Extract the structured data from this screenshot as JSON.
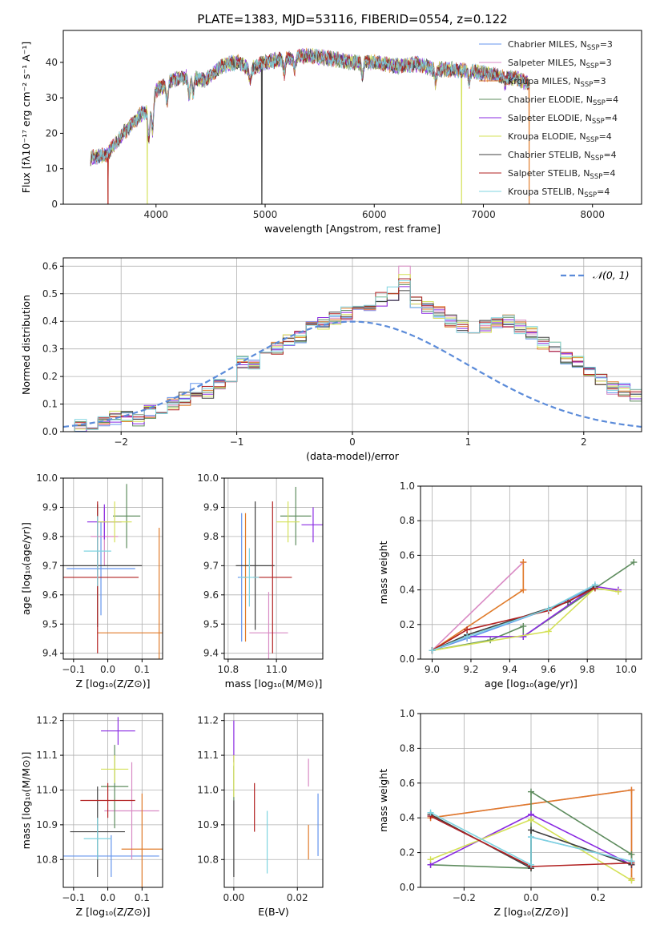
{
  "figure": {
    "title": "PLATE=1383, MJD=53116, FIBERID=0554, z=0.122"
  },
  "colors": [
    "#6495ed",
    "#d98ac4",
    "#e07b2a",
    "#5e8c5e",
    "#8a2be2",
    "#d4e157",
    "#404040",
    "#b22222",
    "#7fd4e0"
  ],
  "chart_data": [
    {
      "id": "spectrum",
      "type": "line",
      "title": "PLATE=1383, MJD=53116, FIBERID=0554, z=0.122",
      "xlabel": "wavelength [Angstrom, rest frame]",
      "ylabel": "Flux [fλ10⁻¹⁷ erg cm⁻² s⁻¹ A⁻¹]",
      "xlim": [
        3150,
        8450
      ],
      "ylim": [
        0,
        49
      ],
      "xticks": [
        4000,
        5000,
        6000,
        7000,
        8000
      ],
      "yticks": [
        0,
        10,
        20,
        30,
        40
      ],
      "grid": false,
      "legend_position": "upper right",
      "continuum": [
        [
          3400,
          13
        ],
        [
          3550,
          14
        ],
        [
          3700,
          20
        ],
        [
          3850,
          25
        ],
        [
          3950,
          27
        ],
        [
          4000,
          32
        ],
        [
          4150,
          35
        ],
        [
          4300,
          36
        ],
        [
          4450,
          35
        ],
        [
          4600,
          39
        ],
        [
          4750,
          40
        ],
        [
          4860,
          38
        ],
        [
          5000,
          40
        ],
        [
          5200,
          41
        ],
        [
          5400,
          42
        ],
        [
          5600,
          41
        ],
        [
          5800,
          40
        ],
        [
          6000,
          40
        ],
        [
          6200,
          39
        ],
        [
          6400,
          39.5
        ],
        [
          6563,
          38
        ],
        [
          6700,
          38
        ],
        [
          6900,
          37.5
        ],
        [
          7100,
          36.5
        ],
        [
          7300,
          35.5
        ],
        [
          7420,
          34
        ]
      ],
      "series": [
        {
          "name": "Chabrier MILES, N_SSP=3"
        },
        {
          "name": "Salpeter MILES, N_SSP=3"
        },
        {
          "name": "Kroupa MILES, N_SSP=3",
          "dropouts": [
            3560,
            7420
          ]
        },
        {
          "name": "Chabrier ELODIE, N_SSP=4"
        },
        {
          "name": "Salpeter ELODIE, N_SSP=4"
        },
        {
          "name": "Kroupa ELODIE, N_SSP=4",
          "dropouts": [
            3920,
            6800
          ]
        },
        {
          "name": "Chabrier STELIB, N_SSP=4",
          "dropouts": [
            4970
          ]
        },
        {
          "name": "Salpeter STELIB, N_SSP=4",
          "dropouts": [
            3560
          ]
        },
        {
          "name": "Kroupa STELIB, N_SSP=4"
        }
      ],
      "legend_labels": [
        {
          "pre": "Chabrier MILES, N",
          "sub": "SSP",
          "post": "=3"
        },
        {
          "pre": "Salpeter MILES, N",
          "sub": "SSP",
          "post": "=3"
        },
        {
          "pre": "Kroupa MILES, N",
          "sub": "SSP",
          "post": "=3"
        },
        {
          "pre": "Chabrier ELODIE, N",
          "sub": "SSP",
          "post": "=4"
        },
        {
          "pre": "Salpeter ELODIE, N",
          "sub": "SSP",
          "post": "=4"
        },
        {
          "pre": "Kroupa ELODIE, N",
          "sub": "SSP",
          "post": "=4"
        },
        {
          "pre": "Chabrier STELIB, N",
          "sub": "SSP",
          "post": "=4"
        },
        {
          "pre": "Salpeter STELIB, N",
          "sub": "SSP",
          "post": "=4"
        },
        {
          "pre": "Kroupa STELIB, N",
          "sub": "SSP",
          "post": "=4"
        }
      ]
    },
    {
      "id": "residuals",
      "type": "histogram",
      "xlabel": "(data-model)/error",
      "ylabel": "Normed distribution",
      "xlim": [
        -2.5,
        2.5
      ],
      "ylim": [
        0,
        0.63
      ],
      "xticks": [
        -2,
        -1,
        0,
        1,
        2
      ],
      "yticks": [
        0.0,
        0.1,
        0.2,
        0.3,
        0.4,
        0.5,
        0.6
      ],
      "grid": true,
      "legend_position": "upper right",
      "bin_width": 0.1,
      "reference_curve": {
        "name": "N(0, 1)",
        "legend_label": "𝒩(0, 1)",
        "mean": 0,
        "sigma": 1,
        "color": "#5b8bd9"
      },
      "base_values": [
        0.02,
        0.02,
        0.03,
        0.03,
        0.05,
        0.05,
        0.04,
        0.07,
        0.08,
        0.1,
        0.12,
        0.15,
        0.14,
        0.17,
        0.2,
        0.25,
        0.25,
        0.28,
        0.3,
        0.33,
        0.34,
        0.38,
        0.39,
        0.41,
        0.43,
        0.44,
        0.46,
        0.48,
        0.5,
        0.53,
        0.47,
        0.45,
        0.43,
        0.4,
        0.38,
        0.37,
        0.38,
        0.39,
        0.4,
        0.38,
        0.36,
        0.32,
        0.3,
        0.27,
        0.25,
        0.22,
        0.19,
        0.16,
        0.15,
        0.13,
        0.11,
        0.1,
        0.08,
        0.07,
        0.06,
        0.05,
        0.04,
        0.03,
        0.03,
        0.02
      ]
    },
    {
      "id": "age-vs-Z",
      "type": "errorbar",
      "xlabel": "Z [log₁₀(Z/Z⊙)]",
      "ylabel": "age  [log₁₀(age/yr)]",
      "xlim": [
        -0.13,
        0.16
      ],
      "ylim": [
        9.38,
        10.0
      ],
      "xticks": [
        -0.1,
        0.0,
        0.1
      ],
      "yticks": [
        9.4,
        9.5,
        9.6,
        9.7,
        9.8,
        9.9,
        10.0
      ],
      "grid": true,
      "points": [
        {
          "x": -0.02,
          "y": 9.69,
          "xerr": 0.1,
          "yerr": 0.16,
          "series": 0
        },
        {
          "x": -0.01,
          "y": 9.8,
          "xerr": 0.04,
          "yerr": 0.1,
          "series": 1
        },
        {
          "x": 0.15,
          "y": 9.47,
          "xerr": 0.18,
          "yerr": 0.36,
          "series": 2
        },
        {
          "x": 0.055,
          "y": 9.87,
          "xerr": 0.04,
          "yerr": 0.11,
          "series": 3
        },
        {
          "x": -0.01,
          "y": 9.85,
          "xerr": 0.05,
          "yerr": 0.06,
          "series": 4
        },
        {
          "x": 0.02,
          "y": 9.85,
          "xerr": 0.05,
          "yerr": 0.07,
          "series": 5
        },
        {
          "x": -0.03,
          "y": 9.7,
          "xerr": 0.13,
          "yerr": 0.21,
          "series": 6
        },
        {
          "x": -0.03,
          "y": 9.66,
          "xerr": 0.12,
          "yerr": 0.26,
          "series": 7
        },
        {
          "x": -0.03,
          "y": 9.75,
          "xerr": 0.04,
          "yerr": 0.12,
          "series": 8
        }
      ]
    },
    {
      "id": "age-vs-mass",
      "type": "errorbar",
      "xlabel": "mass [log₁₀(M/M⊙)]",
      "xlim": [
        10.73,
        11.24
      ],
      "ylim": [
        9.38,
        10.0
      ],
      "xticks": [
        10.75,
        11.0
      ],
      "yticks": [
        9.4,
        9.5,
        9.6,
        9.7,
        9.8,
        9.9,
        10.0
      ],
      "grid": true,
      "points": [
        {
          "x": 10.82,
          "y": 9.66,
          "xerr": 0.02,
          "yerr": 0.22,
          "series": 0
        },
        {
          "x": 10.96,
          "y": 9.47,
          "xerr": 0.1,
          "yerr": 0.14,
          "series": 1
        },
        {
          "x": 10.84,
          "y": 9.66,
          "xerr": 0.01,
          "yerr": 0.22,
          "series": 2
        },
        {
          "x": 11.1,
          "y": 9.87,
          "xerr": 0.08,
          "yerr": 0.1,
          "series": 3
        },
        {
          "x": 11.19,
          "y": 9.84,
          "xerr": 0.06,
          "yerr": 0.06,
          "series": 4
        },
        {
          "x": 11.06,
          "y": 9.85,
          "xerr": 0.06,
          "yerr": 0.07,
          "series": 5
        },
        {
          "x": 10.89,
          "y": 9.7,
          "xerr": 0.1,
          "yerr": 0.22,
          "series": 6
        },
        {
          "x": 10.98,
          "y": 9.66,
          "xerr": 0.1,
          "yerr": 0.26,
          "series": 7
        },
        {
          "x": 10.86,
          "y": 9.66,
          "xerr": 0.05,
          "yerr": 0.1,
          "series": 8
        }
      ]
    },
    {
      "id": "weight-vs-age",
      "type": "line",
      "xlabel": "age  [log₁₀(age/yr)]",
      "ylabel": "mass weight",
      "xlim": [
        8.94,
        10.08
      ],
      "ylim": [
        0,
        1
      ],
      "xticks": [
        9.0,
        9.2,
        9.4,
        9.6,
        9.8,
        10.0
      ],
      "yticks": [
        0.0,
        0.2,
        0.4,
        0.6,
        0.8,
        1.0
      ],
      "grid": true,
      "series": [
        {
          "series": 0,
          "x": [
            9.0,
            9.18,
            9.6,
            9.84
          ],
          "y": [
            0.05,
            0.12,
            0.29,
            0.42
          ]
        },
        {
          "series": 1,
          "x": [
            9.0,
            9.47,
            9.47
          ],
          "y": [
            0.05,
            0.56,
            0.4
          ]
        },
        {
          "series": 2,
          "x": [
            9.0,
            9.47,
            9.47
          ],
          "y": [
            0.05,
            0.4,
            0.56
          ]
        },
        {
          "series": 3,
          "x": [
            9.0,
            9.3,
            9.47,
            9.47,
            10.04
          ],
          "y": [
            0.05,
            0.11,
            0.19,
            0.13,
            0.56
          ]
        },
        {
          "series": 4,
          "x": [
            9.0,
            9.18,
            9.47,
            9.84,
            9.96
          ],
          "y": [
            0.05,
            0.13,
            0.13,
            0.42,
            0.4
          ]
        },
        {
          "series": 5,
          "x": [
            9.0,
            9.6,
            9.84,
            9.96
          ],
          "y": [
            0.05,
            0.16,
            0.41,
            0.39
          ]
        },
        {
          "series": 6,
          "x": [
            9.0,
            9.18,
            9.7,
            9.84
          ],
          "y": [
            0.05,
            0.14,
            0.33,
            0.42
          ]
        },
        {
          "series": 7,
          "x": [
            9.0,
            9.18,
            9.6,
            9.84
          ],
          "y": [
            0.05,
            0.17,
            0.28,
            0.41
          ]
        },
        {
          "series": 8,
          "x": [
            9.0,
            9.18,
            9.6,
            9.84
          ],
          "y": [
            0.05,
            0.13,
            0.29,
            0.43
          ]
        }
      ]
    },
    {
      "id": "mass-vs-Z",
      "type": "errorbar",
      "xlabel": "Z [log₁₀(Z/Z⊙)]",
      "ylabel": "mass [log₁₀(M/M⊙)]",
      "xlim": [
        -0.13,
        0.16
      ],
      "ylim": [
        10.72,
        11.22
      ],
      "xticks": [
        -0.1,
        0.0,
        0.1
      ],
      "yticks": [
        10.8,
        10.9,
        11.0,
        11.1,
        11.2
      ],
      "grid": true,
      "points": [
        {
          "x": 0.01,
          "y": 10.81,
          "xerr": 0.14,
          "yerr": 0.06,
          "series": 0
        },
        {
          "x": 0.07,
          "y": 10.94,
          "xerr": 0.08,
          "yerr": 0.14,
          "series": 1
        },
        {
          "x": 0.1,
          "y": 10.83,
          "xerr": 0.06,
          "yerr": 0.16,
          "series": 2
        },
        {
          "x": 0.02,
          "y": 11.01,
          "xerr": 0.04,
          "yerr": 0.12,
          "series": 3
        },
        {
          "x": 0.03,
          "y": 11.17,
          "xerr": 0.05,
          "yerr": 0.04,
          "series": 4
        },
        {
          "x": 0.02,
          "y": 11.06,
          "xerr": 0.04,
          "yerr": 0.04,
          "series": 5
        },
        {
          "x": -0.03,
          "y": 10.88,
          "xerr": 0.08,
          "yerr": 0.13,
          "series": 6
        },
        {
          "x": 0.0,
          "y": 10.97,
          "xerr": 0.08,
          "yerr": 0.05,
          "series": 7
        },
        {
          "x": -0.03,
          "y": 10.86,
          "xerr": 0.04,
          "yerr": 0.06,
          "series": 8
        }
      ]
    },
    {
      "id": "mass-vs-EBV",
      "type": "errorbar",
      "xlabel": "E(B-V)",
      "xlim": [
        -0.003,
        0.028
      ],
      "ylim": [
        10.72,
        11.22
      ],
      "xticks": [
        0.0,
        0.02
      ],
      "yticks": [
        10.8,
        10.9,
        11.0,
        11.1,
        11.2
      ],
      "grid": true,
      "points": [
        {
          "x": 0.0265,
          "y": 10.9,
          "xerr": 0,
          "yerr": 0.09,
          "series": 0
        },
        {
          "x": 0.0235,
          "y": 11.05,
          "xerr": 0,
          "yerr": 0.04,
          "series": 1
        },
        {
          "x": 0.0235,
          "y": 10.85,
          "xerr": 0,
          "yerr": 0.05,
          "series": 2
        },
        {
          "x": 0.0,
          "y": 11.02,
          "xerr": 0,
          "yerr": 0.05,
          "series": 3
        },
        {
          "x": 0.0,
          "y": 11.14,
          "xerr": 0,
          "yerr": 0.06,
          "series": 4
        },
        {
          "x": 0.0,
          "y": 11.04,
          "xerr": 0,
          "yerr": 0.06,
          "series": 5
        },
        {
          "x": 0.0,
          "y": 10.86,
          "xerr": 0,
          "yerr": 0.11,
          "series": 6
        },
        {
          "x": 0.0065,
          "y": 10.95,
          "xerr": 0,
          "yerr": 0.07,
          "series": 7
        },
        {
          "x": 0.0105,
          "y": 10.85,
          "xerr": 0,
          "yerr": 0.09,
          "series": 8
        }
      ]
    },
    {
      "id": "weight-vs-Z",
      "type": "line",
      "xlabel": "Z [log₁₀(Z/Z⊙)]",
      "ylabel": "mass weight",
      "xlim": [
        -0.33,
        0.33
      ],
      "ylim": [
        0,
        1
      ],
      "xticks": [
        -0.2,
        0.0,
        0.2
      ],
      "yticks": [
        0.0,
        0.2,
        0.4,
        0.6,
        0.8,
        1.0
      ],
      "grid": true,
      "series": [
        {
          "series": 0,
          "x": [
            -0.3,
            0.0,
            0.0,
            0.3
          ],
          "y": [
            0.41,
            0.12,
            0.29,
            0.15
          ]
        },
        {
          "series": 1,
          "x": [
            -0.3,
            0.3,
            0.3
          ],
          "y": [
            0.4,
            0.56,
            0.04
          ]
        },
        {
          "series": 2,
          "x": [
            -0.3,
            0.3,
            0.3
          ],
          "y": [
            0.4,
            0.56,
            0.05
          ]
        },
        {
          "series": 3,
          "x": [
            -0.3,
            0.0,
            0.0,
            0.3,
            0.3
          ],
          "y": [
            0.13,
            0.11,
            0.55,
            0.19,
            0.14
          ]
        },
        {
          "series": 4,
          "x": [
            -0.3,
            0.0,
            0.3
          ],
          "y": [
            0.13,
            0.42,
            0.13
          ]
        },
        {
          "series": 5,
          "x": [
            -0.3,
            0.0,
            0.3
          ],
          "y": [
            0.16,
            0.39,
            0.04
          ]
        },
        {
          "series": 6,
          "x": [
            -0.3,
            0.0,
            0.0,
            0.3
          ],
          "y": [
            0.42,
            0.11,
            0.33,
            0.13
          ]
        },
        {
          "series": 7,
          "x": [
            -0.3,
            0.0,
            0.3
          ],
          "y": [
            0.41,
            0.12,
            0.14
          ]
        },
        {
          "series": 8,
          "x": [
            -0.3,
            0.0,
            0.0,
            0.3
          ],
          "y": [
            0.43,
            0.13,
            0.29,
            0.15
          ]
        }
      ]
    }
  ]
}
